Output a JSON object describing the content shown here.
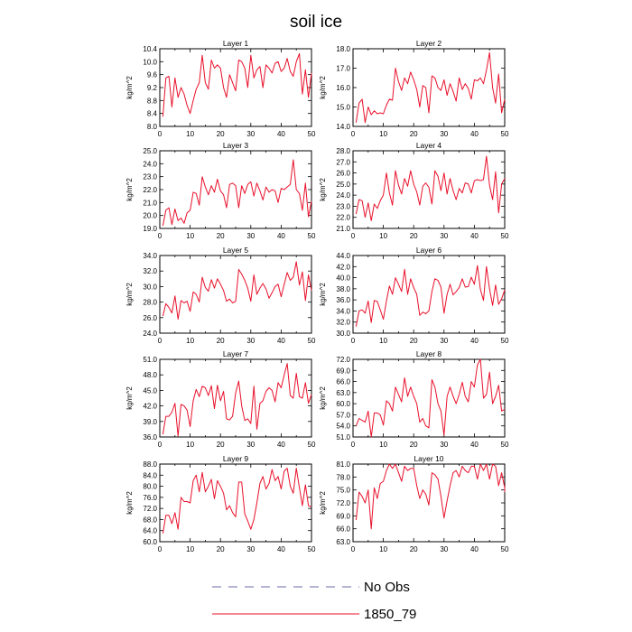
{
  "title": "soil ice",
  "legend": [
    {
      "label": "No Obs",
      "color": "#6a6aa8",
      "dash": true
    },
    {
      "label": "1850_79",
      "color": "#e8102a",
      "dash": false
    }
  ],
  "colors": {
    "series": "#e8102a",
    "axis": "#000000"
  },
  "chart_data": [
    {
      "type": "line",
      "title": "Layer 1",
      "ylabel": "kg/m^2",
      "xlim": [
        0,
        50
      ],
      "ylim": [
        8.0,
        10.4
      ],
      "xticks": [
        "0",
        "10",
        "20",
        "30",
        "40",
        "50"
      ],
      "yticks": [
        "8.0",
        "8.4",
        "8.8",
        "9.2",
        "9.6",
        "10.0",
        "10.4"
      ],
      "series": [
        {
          "name": "1850_79",
          "x_start": 1,
          "values": [
            8.3,
            9.5,
            9.55,
            8.6,
            9.5,
            8.9,
            9.2,
            9.0,
            8.65,
            8.4,
            8.8,
            9.15,
            9.35,
            10.2,
            9.35,
            9.15,
            10.05,
            9.8,
            9.9,
            9.8,
            9.2,
            8.9,
            9.6,
            9.35,
            9.1,
            10.05,
            10.0,
            9.8,
            9.2,
            10.2,
            9.5,
            9.75,
            9.85,
            9.2,
            9.9,
            9.8,
            9.65,
            9.95,
            10.0,
            9.7,
            9.8,
            10.1,
            9.7,
            9.55,
            10.0,
            10.25,
            9.0,
            9.75,
            8.9,
            9.65
          ]
        }
      ]
    },
    {
      "type": "line",
      "title": "Layer 2",
      "ylabel": "kg/m^2",
      "xlim": [
        0,
        50
      ],
      "ylim": [
        14.0,
        18.0
      ],
      "xticks": [
        "0",
        "10",
        "20",
        "30",
        "40",
        "50"
      ],
      "yticks": [
        "14.0",
        "15.0",
        "16.0",
        "17.0",
        "18.0"
      ],
      "series": [
        {
          "name": "1850_79",
          "x_start": 1,
          "values": [
            14.2,
            15.2,
            15.4,
            14.2,
            15.0,
            14.6,
            14.8,
            14.65,
            14.7,
            14.65,
            15.1,
            15.4,
            15.35,
            17.0,
            16.3,
            15.85,
            16.5,
            16.2,
            16.8,
            16.4,
            15.9,
            15.0,
            16.1,
            16.0,
            14.7,
            16.6,
            16.5,
            16.0,
            15.85,
            16.4,
            15.6,
            16.2,
            15.8,
            15.3,
            16.5,
            15.9,
            16.2,
            15.95,
            15.4,
            16.4,
            16.35,
            16.5,
            16.2,
            16.9,
            17.8,
            16.0,
            15.2,
            16.7,
            14.7,
            15.4
          ]
        }
      ]
    },
    {
      "type": "line",
      "title": "Layer 3",
      "ylabel": "kg/m^2",
      "xlim": [
        0,
        50
      ],
      "ylim": [
        19.0,
        25.0
      ],
      "xticks": [
        "0",
        "10",
        "20",
        "30",
        "40",
        "50"
      ],
      "yticks": [
        "19.0",
        "20.0",
        "21.0",
        "22.0",
        "23.0",
        "24.0",
        "25.0"
      ],
      "series": [
        {
          "name": "1850_79",
          "x_start": 1,
          "values": [
            19.2,
            20.4,
            20.6,
            19.3,
            20.5,
            19.6,
            19.8,
            19.4,
            20.2,
            20.4,
            21.8,
            21.7,
            20.8,
            23.0,
            22.2,
            21.6,
            22.3,
            21.8,
            22.8,
            21.9,
            21.6,
            20.6,
            22.4,
            22.5,
            22.3,
            20.6,
            22.3,
            21.7,
            22.4,
            22.6,
            21.5,
            22.5,
            21.9,
            21.2,
            22.2,
            21.8,
            22.0,
            21.9,
            21.0,
            22.1,
            22.0,
            22.2,
            22.4,
            24.3,
            22.0,
            21.7,
            20.4,
            22.5,
            19.9,
            21.1
          ]
        }
      ]
    },
    {
      "type": "line",
      "title": "Layer 4",
      "ylabel": "kg/m^2",
      "xlim": [
        0,
        50
      ],
      "ylim": [
        21.0,
        28.0
      ],
      "xticks": [
        "0",
        "10",
        "20",
        "30",
        "40",
        "50"
      ],
      "yticks": [
        "21.0",
        "22.0",
        "23.0",
        "24.0",
        "25.0",
        "26.0",
        "27.0",
        "28.0"
      ],
      "series": [
        {
          "name": "1850_79",
          "x_start": 1,
          "values": [
            22.3,
            23.6,
            23.5,
            22.0,
            23.3,
            21.7,
            23.2,
            22.8,
            23.5,
            24.0,
            26.0,
            24.2,
            23.1,
            26.2,
            24.9,
            24.1,
            25.5,
            24.8,
            26.2,
            25.0,
            24.3,
            23.1,
            24.8,
            25.1,
            24.7,
            23.2,
            26.2,
            25.7,
            24.4,
            26.0,
            24.1,
            25.5,
            24.4,
            23.6,
            24.6,
            24.2,
            25.1,
            25.0,
            24.2,
            25.3,
            25.4,
            25.3,
            25.4,
            27.5,
            24.9,
            23.6,
            26.1,
            22.4,
            25.0,
            25.5
          ]
        }
      ]
    },
    {
      "type": "line",
      "title": "Layer 5",
      "ylabel": "kg/m^2",
      "xlim": [
        0,
        50
      ],
      "ylim": [
        24.0,
        34.0
      ],
      "xticks": [
        "0",
        "10",
        "20",
        "30",
        "40",
        "50"
      ],
      "yticks": [
        "24.0",
        "26.0",
        "28.0",
        "30.0",
        "32.0",
        "34.0"
      ],
      "series": [
        {
          "name": "1850_79",
          "x_start": 1,
          "values": [
            26.2,
            27.8,
            27.3,
            26.6,
            28.8,
            25.8,
            28.2,
            27.9,
            28.1,
            26.8,
            29.3,
            29.0,
            28.0,
            31.2,
            29.9,
            29.4,
            30.9,
            29.8,
            31.0,
            30.3,
            29.5,
            28.1,
            28.4,
            27.9,
            28.1,
            32.2,
            31.6,
            30.8,
            29.8,
            28.1,
            31.5,
            29.0,
            29.8,
            30.4,
            29.7,
            28.5,
            29.2,
            30.0,
            30.3,
            28.7,
            30.3,
            31.8,
            30.8,
            31.2,
            33.2,
            30.2,
            31.9,
            28.2,
            31.5,
            29.5
          ]
        }
      ]
    },
    {
      "type": "line",
      "title": "Layer 6",
      "ylabel": "kg/m^2",
      "xlim": [
        0,
        50
      ],
      "ylim": [
        30.0,
        44.0
      ],
      "xticks": [
        "0",
        "10",
        "20",
        "30",
        "40",
        "50"
      ],
      "yticks": [
        "30.0",
        "32.0",
        "34.0",
        "36.0",
        "38.0",
        "40.0",
        "42.0",
        "44.0"
      ],
      "series": [
        {
          "name": "1850_79",
          "x_start": 1,
          "values": [
            31.2,
            34.0,
            34.2,
            33.6,
            35.8,
            31.9,
            35.9,
            35.7,
            34.2,
            32.5,
            35.8,
            38.5,
            37.0,
            40.0,
            38.8,
            37.5,
            41.5,
            37.0,
            39.8,
            38.2,
            37.0,
            33.2,
            33.8,
            33.5,
            34.0,
            37.5,
            39.8,
            39.5,
            38.3,
            33.6,
            37.0,
            38.8,
            36.9,
            37.5,
            38.2,
            39.8,
            38.3,
            38.4,
            40.1,
            38.8,
            42.2,
            37.9,
            35.9,
            42.0,
            38.0,
            35.0,
            38.7,
            35.2,
            36.2,
            37.8
          ]
        }
      ]
    },
    {
      "type": "line",
      "title": "Layer 7",
      "ylabel": "kg/m^2",
      "xlim": [
        0,
        50
      ],
      "ylim": [
        36.0,
        51.0
      ],
      "xticks": [
        "0",
        "10",
        "20",
        "30",
        "40",
        "50"
      ],
      "yticks": [
        "36.0",
        "39.0",
        "42.0",
        "45.0",
        "48.0",
        "51.0"
      ],
      "series": [
        {
          "name": "1850_79",
          "x_start": 1,
          "values": [
            36.5,
            40.0,
            40.0,
            40.8,
            42.5,
            36.2,
            42.3,
            42.0,
            41.2,
            38.0,
            43.0,
            45.2,
            43.8,
            45.8,
            45.5,
            44.0,
            45.9,
            41.5,
            46.0,
            43.0,
            44.8,
            39.5,
            39.3,
            40.0,
            44.5,
            46.8,
            42.0,
            39.2,
            39.5,
            38.6,
            45.8,
            37.5,
            42.5,
            43.0,
            44.8,
            45.5,
            45.0,
            42.8,
            46.5,
            45.5,
            48.0,
            50.2,
            44.0,
            43.5,
            48.3,
            43.8,
            43.5,
            46.5,
            42.5,
            44.2
          ]
        }
      ]
    },
    {
      "type": "line",
      "title": "Layer 8",
      "ylabel": "kg/m^2",
      "xlim": [
        0,
        50
      ],
      "ylim": [
        51.0,
        72.0
      ],
      "xticks": [
        "0",
        "10",
        "20",
        "30",
        "40",
        "50"
      ],
      "yticks": [
        "51.0",
        "54.0",
        "57.0",
        "60.0",
        "63.0",
        "66.0",
        "69.0",
        "72.0"
      ],
      "series": [
        {
          "name": "1850_79",
          "x_start": 1,
          "values": [
            54.0,
            56.0,
            55.5,
            55.0,
            58.0,
            51.0,
            57.5,
            57.5,
            57.0,
            54.2,
            60.8,
            60.0,
            58.0,
            64.5,
            62.5,
            60.5,
            67.0,
            62.0,
            64.5,
            62.0,
            60.0,
            55.0,
            56.0,
            54.0,
            53.5,
            66.5,
            64.5,
            60.0,
            58.0,
            51.5,
            62.0,
            64.5,
            62.0,
            60.0,
            62.5,
            65.8,
            62.0,
            60.5,
            66.0,
            64.5,
            70.5,
            72.0,
            61.5,
            62.5,
            68.5,
            60.0,
            62.0,
            65.0,
            58.0,
            58.5
          ]
        }
      ]
    },
    {
      "type": "line",
      "title": "Layer 9",
      "ylabel": "kg/m^2",
      "xlim": [
        0,
        50
      ],
      "ylim": [
        60.0,
        88.0
      ],
      "xticks": [
        "0",
        "10",
        "20",
        "30",
        "40",
        "50"
      ],
      "yticks": [
        "60.0",
        "64.0",
        "68.0",
        "72.0",
        "76.0",
        "80.0",
        "84.0",
        "88.0"
      ],
      "series": [
        {
          "name": "1850_79",
          "x_start": 1,
          "values": [
            63.0,
            69.5,
            69.5,
            66.5,
            70.5,
            64.5,
            76.0,
            74.5,
            74.5,
            74.0,
            82.0,
            84.0,
            78.0,
            85.0,
            78.0,
            80.0,
            82.5,
            75.5,
            82.0,
            80.0,
            77.5,
            71.5,
            73.0,
            70.5,
            69.0,
            81.5,
            81.5,
            70.0,
            67.5,
            64.5,
            68.0,
            74.0,
            81.0,
            83.5,
            79.0,
            81.0,
            86.0,
            82.0,
            83.5,
            79.0,
            85.5,
            86.5,
            80.0,
            77.5,
            86.5,
            79.5,
            73.0,
            80.5,
            73.0,
            72.5
          ]
        }
      ]
    },
    {
      "type": "line",
      "title": "Layer 10",
      "ylabel": "kg/m^2",
      "xlim": [
        0,
        50
      ],
      "ylim": [
        63.0,
        81.0
      ],
      "xticks": [
        "0",
        "10",
        "20",
        "30",
        "40",
        "50"
      ],
      "yticks": [
        "63.0",
        "66.0",
        "69.0",
        "72.0",
        "75.0",
        "78.0",
        "81.0"
      ],
      "series": [
        {
          "name": "1850_79",
          "x_start": 1,
          "values": [
            68.0,
            74.5,
            73.5,
            72.0,
            75.0,
            66.0,
            75.5,
            73.0,
            76.5,
            77.0,
            79.5,
            81.0,
            80.0,
            81.0,
            79.0,
            77.0,
            80.5,
            79.5,
            80.0,
            80.0,
            76.0,
            73.0,
            75.0,
            74.0,
            71.5,
            79.0,
            78.5,
            77.5,
            73.5,
            68.5,
            72.5,
            76.0,
            79.0,
            79.5,
            78.0,
            80.5,
            79.5,
            79.0,
            80.5,
            80.5,
            77.5,
            81.0,
            79.5,
            81.0,
            77.5,
            81.0,
            80.5,
            76.0,
            79.0,
            75.5,
            74.5
          ]
        }
      ]
    }
  ]
}
